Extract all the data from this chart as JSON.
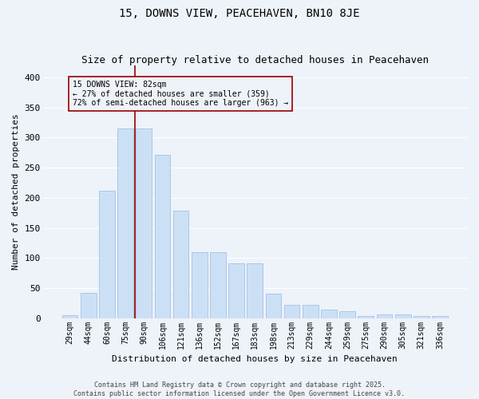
{
  "title": "15, DOWNS VIEW, PEACEHAVEN, BN10 8JE",
  "subtitle": "Size of property relative to detached houses in Peacehaven",
  "xlabel": "Distribution of detached houses by size in Peacehaven",
  "ylabel": "Number of detached properties",
  "categories": [
    "29sqm",
    "44sqm",
    "60sqm",
    "75sqm",
    "90sqm",
    "106sqm",
    "121sqm",
    "136sqm",
    "152sqm",
    "167sqm",
    "183sqm",
    "198sqm",
    "213sqm",
    "229sqm",
    "244sqm",
    "259sqm",
    "275sqm",
    "290sqm",
    "305sqm",
    "321sqm",
    "336sqm"
  ],
  "values": [
    5,
    42,
    212,
    315,
    315,
    272,
    178,
    109,
    109,
    91,
    91,
    40,
    22,
    22,
    14,
    11,
    4,
    6,
    6,
    3,
    4
  ],
  "bar_color": "#cce0f5",
  "bar_edge_color": "#aac8e8",
  "vline_x": 3.5,
  "vline_color": "#990000",
  "annotation_text": "15 DOWNS VIEW: 82sqm\n← 27% of detached houses are smaller (359)\n72% of semi-detached houses are larger (963) →",
  "annotation_box_color": "#990000",
  "ylim": [
    0,
    420
  ],
  "yticks": [
    0,
    50,
    100,
    150,
    200,
    250,
    300,
    350,
    400
  ],
  "footer": "Contains HM Land Registry data © Crown copyright and database right 2025.\nContains public sector information licensed under the Open Government Licence v3.0.",
  "bg_color": "#eef2f9",
  "grid_color": "#ffffff",
  "title_fontsize": 10,
  "subtitle_fontsize": 9,
  "tick_fontsize": 7,
  "xlabel_fontsize": 8,
  "ylabel_fontsize": 8,
  "annot_fontsize": 7,
  "footer_fontsize": 6
}
